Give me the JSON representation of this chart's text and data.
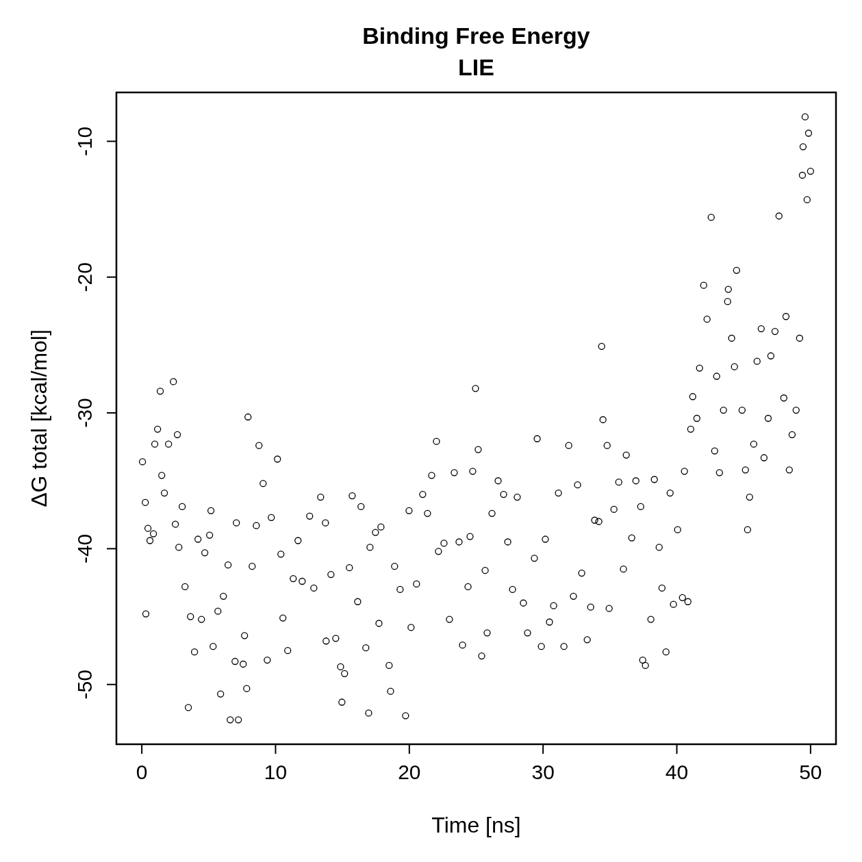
{
  "chart_data": {
    "type": "scatter",
    "title": "Binding Free Energy\nLIE",
    "xlabel": "Time [ns]",
    "ylabel": "ΔG total [kcal/mol]",
    "xlim": [
      -1.9,
      51.9
    ],
    "ylim": [
      -54.4,
      -6.4
    ],
    "xticks": [
      0,
      10,
      20,
      30,
      40,
      50
    ],
    "yticks": [
      -10,
      -20,
      -30,
      -40,
      -50
    ],
    "grid": false,
    "marker": "circle",
    "series": [
      {
        "color": "#000000",
        "x": [
          0.05,
          0.26,
          0.3,
          0.46,
          0.61,
          0.87,
          0.97,
          1.18,
          1.38,
          1.49,
          1.69,
          2.0,
          2.36,
          2.51,
          2.66,
          2.77,
          3.02,
          3.23,
          3.48,
          3.64,
          3.94,
          4.2,
          4.46,
          4.71,
          5.07,
          5.17,
          5.33,
          5.69,
          5.89,
          6.1,
          6.45,
          6.61,
          6.97,
          7.07,
          7.22,
          7.58,
          7.68,
          7.94,
          7.84,
          8.25,
          8.56,
          8.76,
          9.07,
          9.38,
          9.68,
          10.14,
          10.4,
          10.55,
          10.91,
          11.32,
          11.68,
          11.99,
          12.55,
          12.86,
          13.37,
          13.73,
          13.78,
          14.14,
          14.5,
          14.86,
          14.96,
          15.16,
          15.52,
          15.73,
          16.14,
          16.39,
          16.75,
          16.96,
          17.06,
          17.47,
          17.73,
          17.88,
          18.49,
          18.6,
          18.9,
          19.31,
          19.72,
          19.98,
          20.13,
          20.54,
          21.0,
          21.36,
          21.67,
          22.03,
          22.18,
          22.59,
          23.0,
          23.36,
          23.72,
          23.98,
          24.39,
          24.54,
          24.74,
          24.95,
          25.15,
          25.41,
          25.67,
          25.82,
          26.18,
          26.64,
          27.05,
          27.36,
          27.72,
          28.07,
          28.53,
          28.84,
          29.35,
          29.56,
          29.87,
          30.17,
          30.48,
          30.79,
          31.15,
          31.56,
          31.92,
          32.27,
          32.58,
          32.89,
          33.3,
          33.56,
          33.86,
          34.17,
          34.38,
          34.48,
          34.79,
          34.94,
          35.3,
          35.66,
          36.01,
          36.22,
          36.63,
          36.94,
          37.3,
          37.45,
          37.65,
          38.06,
          38.32,
          38.68,
          38.89,
          39.19,
          39.5,
          39.75,
          40.06,
          40.42,
          40.57,
          40.83,
          41.04,
          41.19,
          41.5,
          41.7,
          42.01,
          42.26,
          42.57,
          42.83,
          42.98,
          43.19,
          43.49,
          43.8,
          43.85,
          44.1,
          44.31,
          44.47,
          44.88,
          45.13,
          45.29,
          45.44,
          45.75,
          46.0,
          46.31,
          46.52,
          46.83,
          47.03,
          47.34,
          47.64,
          48.0,
          48.16,
          48.41,
          48.62,
          48.92,
          49.18,
          49.39,
          49.44,
          49.59,
          49.74,
          49.85,
          50.0
        ],
        "values": [
          -33.6,
          -36.6,
          -44.8,
          -38.5,
          -39.4,
          -38.9,
          -32.3,
          -31.2,
          -28.4,
          -34.6,
          -35.9,
          -32.3,
          -27.7,
          -38.2,
          -31.6,
          -39.9,
          -36.9,
          -42.8,
          -51.7,
          -45.0,
          -47.6,
          -39.3,
          -45.2,
          -40.3,
          -39.0,
          -37.2,
          -47.2,
          -44.6,
          -50.7,
          -43.5,
          -41.2,
          -52.6,
          -48.3,
          -38.1,
          -52.6,
          -48.5,
          -46.4,
          -30.3,
          -50.3,
          -41.3,
          -38.3,
          -32.4,
          -35.2,
          -48.2,
          -37.7,
          -33.4,
          -40.4,
          -45.1,
          -47.5,
          -42.2,
          -39.4,
          -42.4,
          -37.6,
          -42.9,
          -36.2,
          -38.1,
          -46.8,
          -41.9,
          -46.6,
          -48.7,
          -51.3,
          -49.2,
          -41.4,
          -36.1,
          -43.9,
          -36.9,
          -47.3,
          -52.1,
          -39.9,
          -38.8,
          -45.5,
          -38.4,
          -48.6,
          -50.5,
          -41.3,
          -43.0,
          -52.3,
          -37.2,
          -45.8,
          -42.6,
          -36.0,
          -37.4,
          -34.6,
          -32.1,
          -40.2,
          -39.6,
          -45.2,
          -34.4,
          -39.5,
          -47.1,
          -42.8,
          -39.1,
          -34.3,
          -28.2,
          -32.7,
          -47.9,
          -41.6,
          -46.2,
          -37.4,
          -35.0,
          -36.0,
          -39.5,
          -43.0,
          -36.2,
          -44.0,
          -46.2,
          -40.7,
          -31.9,
          -47.2,
          -39.3,
          -45.4,
          -44.2,
          -35.9,
          -47.2,
          -32.4,
          -43.5,
          -35.3,
          -41.8,
          -46.7,
          -44.3,
          -37.9,
          -38.0,
          -25.1,
          -30.5,
          -32.4,
          -44.4,
          -37.1,
          -35.1,
          -41.5,
          -33.1,
          -39.2,
          -35.0,
          -36.9,
          -48.2,
          -48.6,
          -45.2,
          -34.9,
          -39.9,
          -42.9,
          -47.6,
          -35.9,
          -44.1,
          -38.6,
          -43.6,
          -34.3,
          -43.9,
          -31.2,
          -28.8,
          -30.4,
          -26.7,
          -20.6,
          -23.1,
          -15.6,
          -32.8,
          -27.3,
          -34.4,
          -29.8,
          -21.8,
          -20.9,
          -24.5,
          -26.6,
          -19.5,
          -29.8,
          -34.2,
          -38.6,
          -36.2,
          -32.3,
          -26.2,
          -23.8,
          -33.3,
          -30.4,
          -25.8,
          -24.0,
          -15.5,
          -28.9,
          -22.9,
          -34.2,
          -31.6,
          -29.8,
          -24.5,
          -12.5,
          -10.4,
          -8.2,
          -14.3,
          -9.4,
          -12.2
        ]
      }
    ]
  }
}
